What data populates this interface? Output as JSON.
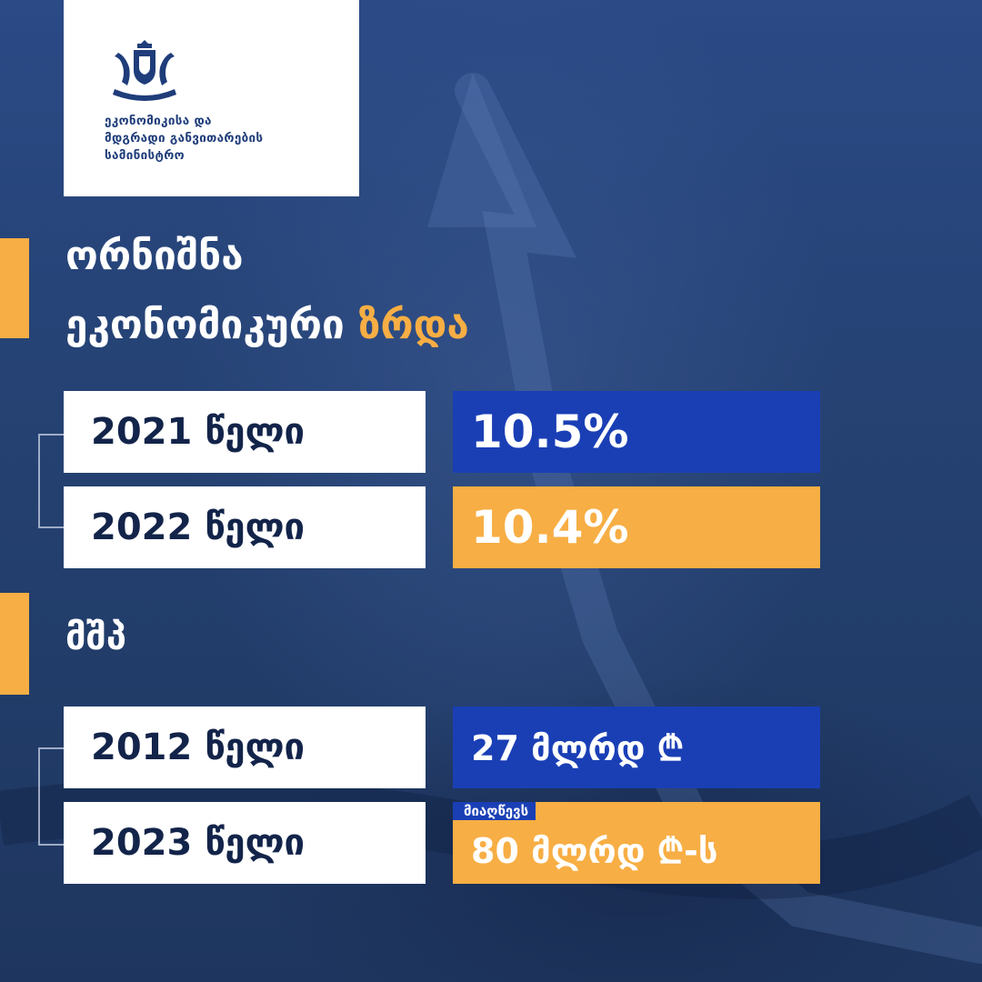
{
  "logo": {
    "emblem": "georgia-coat-of-arms-icon",
    "ministry_line1": "ეკონომიკისა და",
    "ministry_line2": "მდგრადი განვითარების",
    "ministry_line3": "სამინისტრო"
  },
  "headline": {
    "line1": "ორნიშნა",
    "line2_prefix": "ეკონომიკური",
    "line2_highlight": "ზრდა"
  },
  "growth_rows": [
    {
      "year_label": "2021 წელი",
      "value": "10.5%"
    },
    {
      "year_label": "2022 წელი",
      "value": "10.4%"
    }
  ],
  "gdp_heading": "მშპ",
  "gdp_rows": [
    {
      "year_label": "2012 წელი",
      "value": "27 მლრდ ₾"
    },
    {
      "year_label": "2023 წელი",
      "tag": "მიაღწევს",
      "value": "80 მლრდ ₾-ს"
    }
  ],
  "colors": {
    "background": "#253d6e",
    "accent_orange": "#f7ae44",
    "accent_blue": "#1a3fb5",
    "text_dark": "#13244a"
  }
}
